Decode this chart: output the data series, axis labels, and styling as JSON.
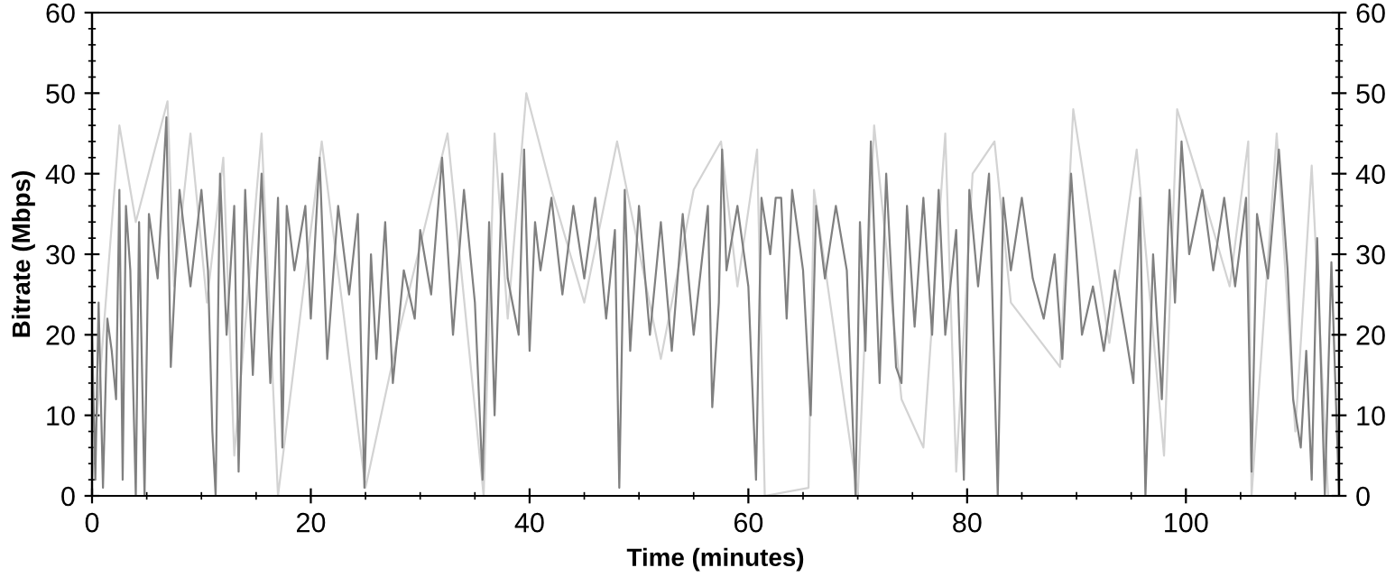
{
  "chart_data": {
    "type": "line",
    "xlabel": "Time (minutes)",
    "ylabel": "Bitrate (Mbps)",
    "xlim": [
      0,
      114
    ],
    "xticks": [
      0,
      20,
      40,
      60,
      80,
      100
    ],
    "ylim": [
      0,
      60
    ],
    "yticks": [
      0,
      10,
      20,
      30,
      40,
      50,
      60
    ],
    "y2lim": [
      0,
      60
    ],
    "y2ticks": [
      0,
      10,
      20,
      30,
      40,
      50,
      60
    ],
    "grid": false,
    "legend": false,
    "marker": "none",
    "line_style": "solid",
    "series": [
      {
        "color": "#d3d3d3",
        "x": [
          0,
          2.5,
          4,
          6.9,
          7.5,
          9,
          10.5,
          12,
          13,
          15.5,
          17,
          21,
          25,
          28,
          32.5,
          35.8,
          36.8,
          38,
          39.7,
          42,
          45,
          48,
          52,
          55,
          57.5,
          59,
          60.8,
          61.5,
          65.5,
          66,
          70,
          71.5,
          74,
          76,
          78,
          79,
          80.5,
          82.5,
          84,
          88.5,
          89.7,
          93,
          95.5,
          98,
          99.2,
          101,
          104,
          105.7,
          106,
          108.3,
          110,
          111.5,
          113
        ],
        "values": [
          2,
          46,
          34,
          49,
          26,
          45,
          24,
          42,
          5,
          45,
          0,
          44,
          1,
          20,
          45,
          0,
          45,
          22,
          50,
          38,
          24,
          44,
          17,
          38,
          44,
          26,
          43,
          0,
          1,
          38,
          0,
          46,
          12,
          6,
          45,
          3,
          40,
          44,
          24,
          16,
          48,
          19,
          43,
          5,
          48,
          40,
          26,
          44,
          0,
          45,
          8,
          41,
          0
        ]
      },
      {
        "color": "#808080",
        "x": [
          0,
          0.3,
          0.6,
          1,
          1.4,
          1.8,
          2.2,
          2.5,
          2.8,
          3.1,
          3.5,
          4,
          4.3,
          4.8,
          5.2,
          6,
          6.8,
          7.2,
          8,
          9,
          10,
          10.6,
          11,
          11.3,
          11.7,
          12.3,
          13,
          13.4,
          14,
          14.7,
          15.5,
          16.3,
          17,
          17.4,
          17.8,
          18.5,
          19.5,
          20,
          20.8,
          21.5,
          22.5,
          23.5,
          24.3,
          24.9,
          25.5,
          26,
          26.8,
          27.5,
          28.5,
          29.5,
          30,
          31,
          32,
          33,
          34,
          35,
          35.7,
          36.3,
          36.8,
          37.5,
          38,
          39,
          39.5,
          40,
          40.5,
          41,
          42,
          43,
          44,
          45,
          46,
          47,
          47.8,
          48.2,
          48.7,
          49.2,
          50,
          51,
          52,
          53,
          54,
          55,
          56.3,
          56.7,
          57.3,
          57.6,
          58,
          59,
          60,
          60.7,
          61.2,
          62,
          62.5,
          63,
          63.5,
          64,
          65,
          65.7,
          66.2,
          67,
          68,
          69,
          69.8,
          70.2,
          70.7,
          71.2,
          72,
          72.6,
          73.5,
          74,
          74.5,
          75.2,
          76,
          76.8,
          77.4,
          78,
          79,
          79.7,
          80.2,
          81,
          82,
          82.8,
          83.3,
          84,
          85,
          86,
          87,
          88,
          88.7,
          89.5,
          90.5,
          91.5,
          92.5,
          93.5,
          94.5,
          95.2,
          95.8,
          96.3,
          97,
          97.8,
          98.5,
          99,
          99.6,
          100.3,
          101.5,
          102.5,
          103.5,
          104.5,
          105.5,
          106,
          106.5,
          107.5,
          108.5,
          109.3,
          109.8,
          110.5,
          111,
          111.5,
          112,
          112.7,
          113.3,
          114
        ],
        "values": [
          20,
          2,
          24,
          1,
          22,
          18,
          12,
          38,
          2,
          36,
          28,
          0,
          34,
          0,
          35,
          27,
          47,
          16,
          38,
          26,
          38,
          28,
          8,
          0,
          40,
          20,
          36,
          3,
          38,
          15,
          40,
          14,
          37,
          6,
          36,
          28,
          36,
          22,
          42,
          17,
          36,
          25,
          35,
          1,
          30,
          17,
          34,
          14,
          28,
          22,
          33,
          25,
          42,
          20,
          38,
          24,
          2,
          34,
          10,
          40,
          27,
          20,
          43,
          18,
          34,
          28,
          37,
          25,
          36,
          27,
          37,
          22,
          33,
          1,
          38,
          18,
          36,
          20,
          34,
          18,
          35,
          20,
          36,
          11,
          24,
          43,
          28,
          36,
          26,
          2,
          37,
          30,
          37,
          37,
          22,
          38,
          28,
          10,
          36,
          27,
          36,
          28,
          0,
          34,
          18,
          44,
          14,
          40,
          16,
          14,
          36,
          21,
          37,
          20,
          38,
          20,
          33,
          2,
          38,
          26,
          40,
          0,
          37,
          28,
          37,
          27,
          22,
          30,
          17,
          40,
          20,
          26,
          18,
          28,
          20,
          14,
          37,
          0,
          30,
          12,
          38,
          24,
          44,
          30,
          38,
          28,
          37,
          26,
          37,
          3,
          35,
          27,
          43,
          28,
          12,
          6,
          18,
          2,
          32,
          0,
          29,
          0
        ]
      }
    ]
  }
}
